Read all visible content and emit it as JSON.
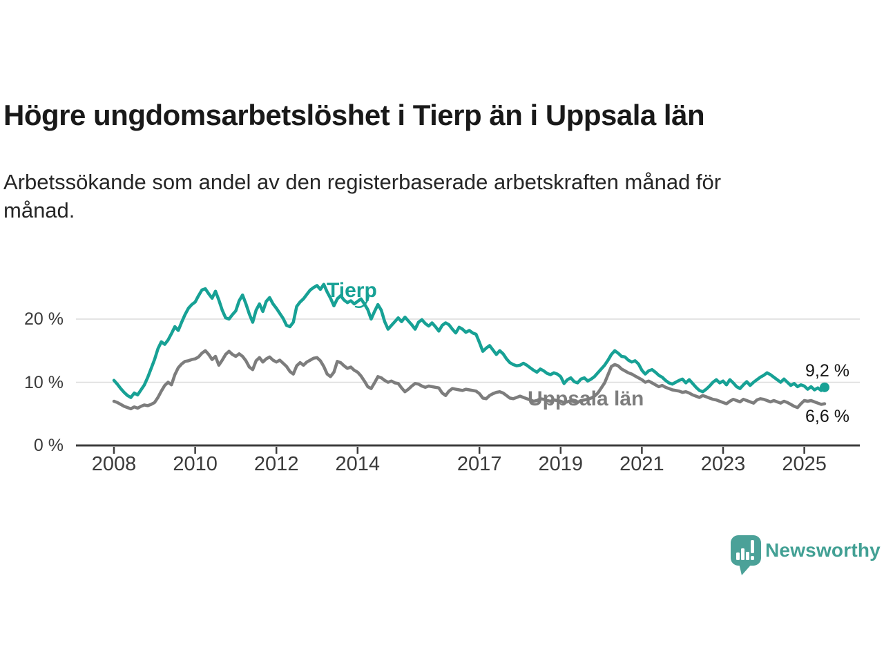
{
  "header": {
    "title": "Högre ungdomsarbetslöshet i Tierp än i Uppsala län",
    "subtitle_lines": [
      "Arbetssökande som andel av den registerbaserade arbetskraften månad för",
      "månad."
    ]
  },
  "chart_data": {
    "type": "line",
    "unit": "%",
    "frequency": "monthly",
    "x_start": "2008-01",
    "x_end": "2025-07",
    "ylim": [
      0,
      27
    ],
    "grid": true,
    "axis_color": "#3c3c3c",
    "grid_color": "#dcdcdc",
    "yticks": [
      {
        "value": 0,
        "label": "0 %"
      },
      {
        "value": 10,
        "label": "10 %"
      },
      {
        "value": 20,
        "label": "20 %"
      }
    ],
    "xticks": [
      {
        "year": 2008,
        "label": "2008"
      },
      {
        "year": 2010,
        "label": "2010"
      },
      {
        "year": 2012,
        "label": "2012"
      },
      {
        "year": 2014,
        "label": "2014"
      },
      {
        "year": 2017,
        "label": "2017"
      },
      {
        "year": 2019,
        "label": "2019"
      },
      {
        "year": 2021,
        "label": "2021"
      },
      {
        "year": 2023,
        "label": "2023"
      },
      {
        "year": 2025,
        "label": "2025"
      }
    ],
    "series": [
      {
        "name": "Tierp",
        "color": "#17a195",
        "end_value": 9.2,
        "end_label": "9,2 %",
        "has_end_dot": true,
        "values": [
          10.3,
          9.7,
          9.0,
          8.4,
          7.9,
          7.6,
          8.3,
          8.0,
          8.8,
          9.6,
          10.8,
          12.2,
          13.6,
          15.3,
          16.4,
          16.0,
          16.7,
          17.7,
          18.8,
          18.2,
          19.5,
          20.7,
          21.7,
          22.3,
          22.7,
          23.7,
          24.6,
          24.8,
          24.0,
          23.3,
          24.4,
          23.0,
          21.4,
          20.2,
          20.0,
          20.7,
          21.3,
          22.9,
          23.8,
          22.4,
          20.8,
          19.5,
          21.4,
          22.4,
          21.2,
          22.8,
          23.4,
          22.4,
          21.7,
          20.9,
          20.1,
          19.0,
          18.8,
          19.5,
          22.0,
          22.7,
          23.2,
          23.9,
          24.6,
          25.0,
          25.3,
          24.7,
          25.5,
          24.3,
          23.3,
          22.1,
          23.2,
          23.7,
          23.0,
          22.6,
          22.9,
          22.4,
          22.8,
          23.2,
          22.4,
          21.5,
          20.0,
          21.2,
          22.3,
          21.4,
          19.6,
          18.4,
          19.0,
          19.6,
          20.2,
          19.6,
          20.3,
          19.7,
          19.1,
          18.4,
          19.5,
          19.9,
          19.3,
          18.9,
          19.4,
          18.8,
          18.1,
          19.0,
          19.4,
          19.1,
          18.4,
          17.8,
          18.7,
          18.4,
          17.9,
          18.2,
          17.8,
          17.6,
          16.3,
          14.9,
          15.4,
          15.8,
          15.1,
          14.4,
          15.0,
          14.5,
          13.7,
          13.1,
          12.8,
          12.6,
          12.7,
          13.0,
          12.7,
          12.3,
          11.9,
          11.6,
          12.1,
          11.8,
          11.4,
          11.2,
          11.5,
          11.3,
          10.9,
          9.8,
          10.4,
          10.7,
          10.1,
          9.9,
          10.5,
          10.7,
          10.2,
          10.5,
          10.9,
          11.5,
          12.1,
          12.7,
          13.5,
          14.4,
          15.0,
          14.6,
          14.1,
          14.0,
          13.5,
          13.2,
          13.4,
          12.9,
          11.9,
          11.3,
          11.8,
          12.0,
          11.6,
          11.1,
          10.8,
          10.3,
          9.9,
          9.7,
          10.0,
          10.3,
          10.5,
          9.9,
          10.4,
          9.8,
          9.2,
          8.7,
          8.5,
          8.9,
          9.4,
          10.0,
          10.4,
          9.9,
          10.2,
          9.6,
          10.4,
          9.9,
          9.3,
          9.0,
          9.6,
          10.1,
          9.5,
          10.0,
          10.4,
          10.8,
          11.1,
          11.5,
          11.2,
          10.8,
          10.4,
          10.0,
          10.5,
          10.0,
          9.5,
          9.8,
          9.3,
          9.6,
          9.4,
          8.9,
          9.3,
          8.8,
          9.1,
          8.7,
          9.2
        ]
      },
      {
        "name": "Uppsala län",
        "color": "#7d7d7d",
        "end_value": 6.6,
        "end_label": "6,6 %",
        "has_end_dot": false,
        "values": [
          7.0,
          6.8,
          6.5,
          6.2,
          6.0,
          5.8,
          6.1,
          5.9,
          6.2,
          6.4,
          6.3,
          6.5,
          6.8,
          7.6,
          8.6,
          9.5,
          10.0,
          9.6,
          11.2,
          12.3,
          12.9,
          13.3,
          13.4,
          13.6,
          13.7,
          14.0,
          14.6,
          15.0,
          14.4,
          13.6,
          14.1,
          12.7,
          13.5,
          14.4,
          14.9,
          14.4,
          14.1,
          14.5,
          14.1,
          13.4,
          12.4,
          12.0,
          13.4,
          13.9,
          13.2,
          13.7,
          14.0,
          13.5,
          13.2,
          13.5,
          13.0,
          12.5,
          11.7,
          11.3,
          12.6,
          13.1,
          12.7,
          13.2,
          13.5,
          13.8,
          13.9,
          13.4,
          12.5,
          11.3,
          10.9,
          11.6,
          13.3,
          13.1,
          12.6,
          12.2,
          12.4,
          11.9,
          11.6,
          11.0,
          10.2,
          9.3,
          9.0,
          9.9,
          10.9,
          10.7,
          10.3,
          10.0,
          10.2,
          9.9,
          9.8,
          9.1,
          8.5,
          8.9,
          9.4,
          9.8,
          9.7,
          9.4,
          9.2,
          9.4,
          9.3,
          9.2,
          9.1,
          8.3,
          7.9,
          8.6,
          9.0,
          8.9,
          8.8,
          8.7,
          8.9,
          8.8,
          8.7,
          8.6,
          8.2,
          7.5,
          7.4,
          7.9,
          8.2,
          8.4,
          8.5,
          8.3,
          7.9,
          7.5,
          7.4,
          7.6,
          7.8,
          7.6,
          7.4,
          7.2,
          7.0,
          7.1,
          7.4,
          7.3,
          7.1,
          7.0,
          7.2,
          7.1,
          7.0,
          6.8,
          6.9,
          7.1,
          6.9,
          6.8,
          7.1,
          7.2,
          7.3,
          7.5,
          7.8,
          8.3,
          9.1,
          9.9,
          11.2,
          12.5,
          12.8,
          12.6,
          12.1,
          11.8,
          11.5,
          11.3,
          11.0,
          10.7,
          10.4,
          10.0,
          10.2,
          9.9,
          9.6,
          9.3,
          9.5,
          9.2,
          9.0,
          8.8,
          8.7,
          8.6,
          8.4,
          8.5,
          8.3,
          8.0,
          7.8,
          7.6,
          7.9,
          7.7,
          7.5,
          7.3,
          7.2,
          7.0,
          6.8,
          6.6,
          7.0,
          7.3,
          7.1,
          6.9,
          7.3,
          7.1,
          6.9,
          6.7,
          7.2,
          7.4,
          7.3,
          7.1,
          6.9,
          7.1,
          6.9,
          6.7,
          7.0,
          6.8,
          6.5,
          6.2,
          6.0,
          6.6,
          7.1,
          7.0,
          7.1,
          6.9,
          6.7,
          6.5,
          6.6
        ]
      }
    ]
  },
  "branding": {
    "logo_text": "Newsworthy",
    "logo_text_color": "#42a094",
    "bubble_color": "#4ba198"
  }
}
